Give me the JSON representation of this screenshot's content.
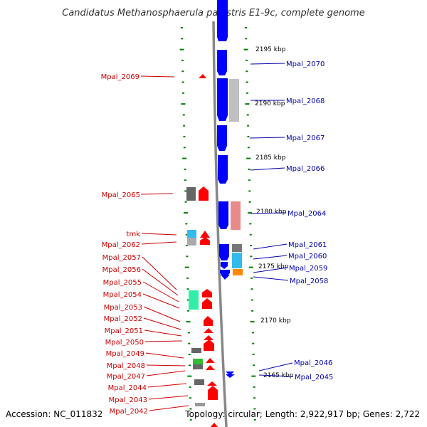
{
  "title": "Candidatus Methanosphaerula palustris E1-9c, complete genome",
  "footer": {
    "accession": "Accession: NC_011832",
    "summary": "Topology: circular; Length: 2,922,917 bp; Genes: 2,722"
  },
  "colors": {
    "minus_strand_label": "#cc0000",
    "plus_strand_label": "#0000aa",
    "minus_gene": "#ff0000",
    "plus_gene": "#0000ff",
    "backbone": "#888888",
    "tick": "#008000"
  },
  "scale_labels": [
    {
      "id": "2195",
      "text": "2195 kbp"
    },
    {
      "id": "2190",
      "text": "2190 kbp"
    },
    {
      "id": "2185",
      "text": "2185 kbp"
    },
    {
      "id": "2180",
      "text": "2180 kbp"
    },
    {
      "id": "2175",
      "text": "2175 kbp"
    },
    {
      "id": "2170",
      "text": "2170 kbp"
    },
    {
      "id": "2165",
      "text": "2165 kbp"
    }
  ],
  "left_labels": [
    {
      "id": "Mpal_2069",
      "text": "Mpal_2069"
    },
    {
      "id": "Mpal_2065",
      "text": "Mpal_2065"
    },
    {
      "id": "tmk",
      "text": "tmk"
    },
    {
      "id": "Mpal_2062",
      "text": "Mpal_2062"
    },
    {
      "id": "Mpal_2057",
      "text": "Mpal_2057"
    },
    {
      "id": "Mpal_2056",
      "text": "Mpal_2056"
    },
    {
      "id": "Mpal_2055",
      "text": "Mpal_2055"
    },
    {
      "id": "Mpal_2054",
      "text": "Mpal_2054"
    },
    {
      "id": "Mpal_2053",
      "text": "Mpal_2053"
    },
    {
      "id": "Mpal_2052",
      "text": "Mpal_2052"
    },
    {
      "id": "Mpal_2051",
      "text": "Mpal_2051"
    },
    {
      "id": "Mpal_2050",
      "text": "Mpal_2050"
    },
    {
      "id": "Mpal_2049",
      "text": "Mpal_2049"
    },
    {
      "id": "Mpal_2048",
      "text": "Mpal_2048"
    },
    {
      "id": "Mpal_2047",
      "text": "Mpal_2047"
    },
    {
      "id": "Mpal_2044",
      "text": "Mpal_2044"
    },
    {
      "id": "Mpal_2043",
      "text": "Mpal_2043"
    },
    {
      "id": "Mpal_2042",
      "text": "Mpal_2042"
    }
  ],
  "right_labels": [
    {
      "id": "Mpal_2070",
      "text": "Mpal_2070"
    },
    {
      "id": "Mpal_2068",
      "text": "Mpal_2068"
    },
    {
      "id": "Mpal_2067",
      "text": "Mpal_2067"
    },
    {
      "id": "Mpal_2066",
      "text": "Mpal_2066"
    },
    {
      "id": "Mpal_2064",
      "text": "Mpal_2064"
    },
    {
      "id": "Mpal_2061",
      "text": "Mpal_2061"
    },
    {
      "id": "Mpal_2060",
      "text": "Mpal_2060"
    },
    {
      "id": "Mpal_2059",
      "text": "Mpal_2059"
    },
    {
      "id": "Mpal_2058",
      "text": "Mpal_2058"
    },
    {
      "id": "Mpal_2046",
      "text": "Mpal_2046"
    },
    {
      "id": "Mpal_2045",
      "text": "Mpal_2045"
    }
  ]
}
